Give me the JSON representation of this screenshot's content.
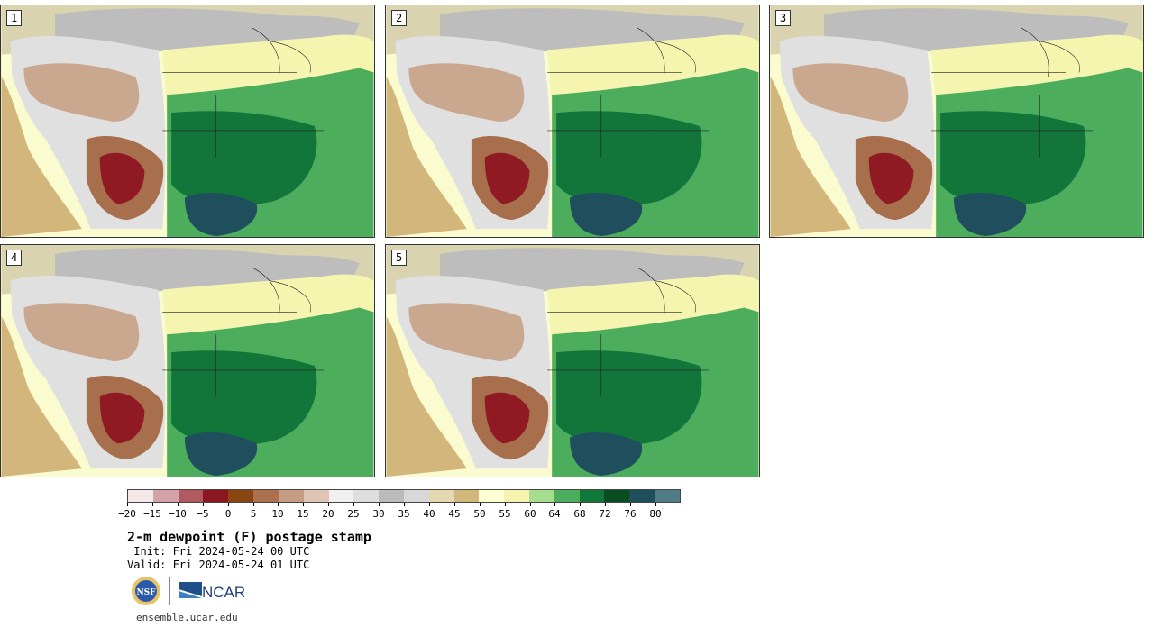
{
  "panels": [
    {
      "label": "1"
    },
    {
      "label": "2"
    },
    {
      "label": "3"
    },
    {
      "label": "4"
    },
    {
      "label": "5"
    }
  ],
  "colorbar": {
    "colors": [
      "#f4e8e8",
      "#d4a3a7",
      "#b05a60",
      "#8b1522",
      "#8a4511",
      "#aa7150",
      "#c59c84",
      "#dfc3b4",
      "#f0f0f0",
      "#dedede",
      "#bbbbbb",
      "#d8d8d8",
      "#e6d6b1",
      "#d3b67c",
      "#ffffd6",
      "#f5f5b0",
      "#a8dd8e",
      "#4cae5d",
      "#12753a",
      "#0a4d23",
      "#1f4e5c",
      "#4f7d85"
    ],
    "tick_labels": [
      "−20",
      "−15",
      "−10",
      "−5",
      "0",
      "5",
      "10",
      "15",
      "20",
      "25",
      "30",
      "35",
      "40",
      "45",
      "50",
      "55",
      "60",
      "64",
      "68",
      "72",
      "76",
      "80"
    ]
  },
  "title": "2-m dewpoint (F) postage stamp",
  "init": " Init: Fri 2024-05-24 00 UTC",
  "valid": "Valid: Fri 2024-05-24 01 UTC",
  "logos": {
    "nsf": "NSF",
    "ncar": "NCAR"
  },
  "footer": "ensemble.ucar.edu"
}
